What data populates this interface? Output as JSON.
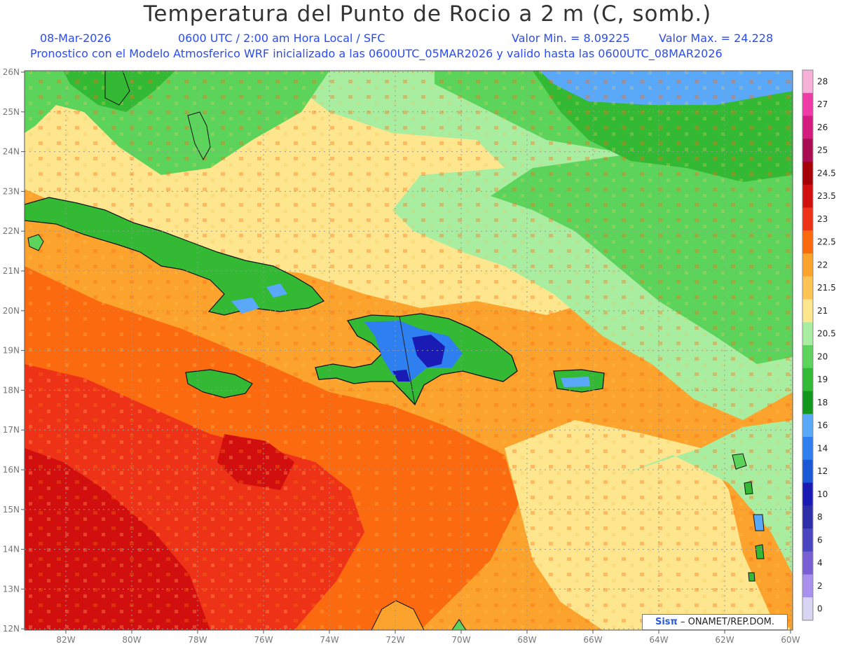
{
  "header": {
    "title": "Temperatura del Punto de Rocio a 2 m (C, somb.)",
    "date": "08-Mar-2026",
    "time": "0600 UTC / 2:00 am Hora Local / SFC",
    "min": "Valor Min. = 8.09225",
    "max": "Valor Max. = 24.228",
    "info": "Pronostico con el Modelo Atmosferico WRF inicializado a las 0600UTC_05MAR2026 y valido hasta las  0600UTC_08MAR2026"
  },
  "map": {
    "lat_labels": [
      "26N",
      "25N",
      "24N",
      "23N",
      "22N",
      "21N",
      "20N",
      "19N",
      "18N",
      "17N",
      "16N",
      "15N",
      "14N",
      "13N",
      "12N"
    ],
    "lon_labels": [
      "82W",
      "80W",
      "78W",
      "76W",
      "74W",
      "72W",
      "70W",
      "68W",
      "66W",
      "64W",
      "62W",
      "60W"
    ]
  },
  "colorbar": {
    "labels": [
      "28",
      "27",
      "26",
      "25",
      "24.5",
      "23.5",
      "23",
      "22.5",
      "22",
      "21.5",
      "21",
      "20.5",
      "20",
      "19",
      "18",
      "16",
      "14",
      "12",
      "10",
      "8",
      "6",
      "4",
      "2",
      "0"
    ],
    "colors": [
      "#f7b1d8",
      "#ee3ba8",
      "#d41b80",
      "#a80d52",
      "#a50008",
      "#d10f0f",
      "#ee3218",
      "#fb6a0f",
      "#fba32c",
      "#fbc454",
      "#fde68d",
      "#a9eda1",
      "#5cd45c",
      "#34b934",
      "#12961b",
      "#5aa8f8",
      "#2e7ff0",
      "#1a58d6",
      "#1a1ab4",
      "#2e2ea8",
      "#4b46c0",
      "#7860d4",
      "#a890ec",
      "#d8d4f4"
    ]
  },
  "credit": {
    "brand": "Sisπ",
    "text": "– ONAMET/REP.DOM."
  }
}
